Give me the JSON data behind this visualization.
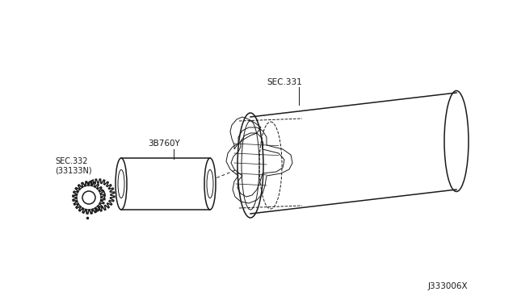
{
  "bg_color": "#ffffff",
  "line_color": "#1a1a1a",
  "text_color": "#1a1a1a",
  "fig_width": 6.4,
  "fig_height": 3.72,
  "dpi": 100,
  "diagram_code": "J333006X",
  "label_sec331": "SEC.331",
  "label_38760y": "3B760Y",
  "label_sec332": "SEC.332\n(33133N)"
}
